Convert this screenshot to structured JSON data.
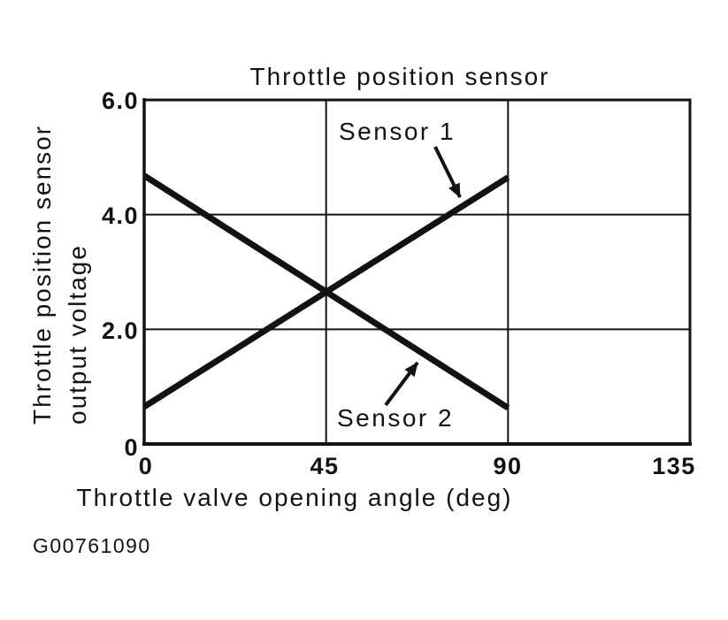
{
  "figure_id": "G00761090",
  "colors": {
    "ink": "#121212",
    "background": "#ffffff"
  },
  "chart": {
    "title": "Throttle position sensor",
    "x_axis": {
      "label": "Throttle valve opening angle (deg)",
      "ticks": [
        "0",
        "45",
        "90",
        "135"
      ]
    },
    "y_axis": {
      "label_line1": "Throttle position sensor",
      "label_line2": "output voltage",
      "ticks": [
        "6.0",
        "4.0",
        "2.0",
        "0"
      ]
    }
  },
  "chart_data": {
    "type": "line",
    "title": "Throttle position sensor",
    "xlabel": "Throttle valve opening angle (deg)",
    "ylabel": "Throttle position sensor output voltage",
    "xlim": [
      0,
      135
    ],
    "ylim": [
      0,
      6
    ],
    "x_ticks": [
      0,
      45,
      90,
      135
    ],
    "y_ticks": [
      0,
      2,
      4,
      6
    ],
    "grid": true,
    "legend_position": "inline-annotations",
    "series": [
      {
        "name": "Sensor 1",
        "x": [
          0,
          90
        ],
        "y": [
          0.65,
          4.65
        ]
      },
      {
        "name": "Sensor 2",
        "x": [
          0,
          90
        ],
        "y": [
          4.68,
          0.63
        ]
      }
    ]
  }
}
